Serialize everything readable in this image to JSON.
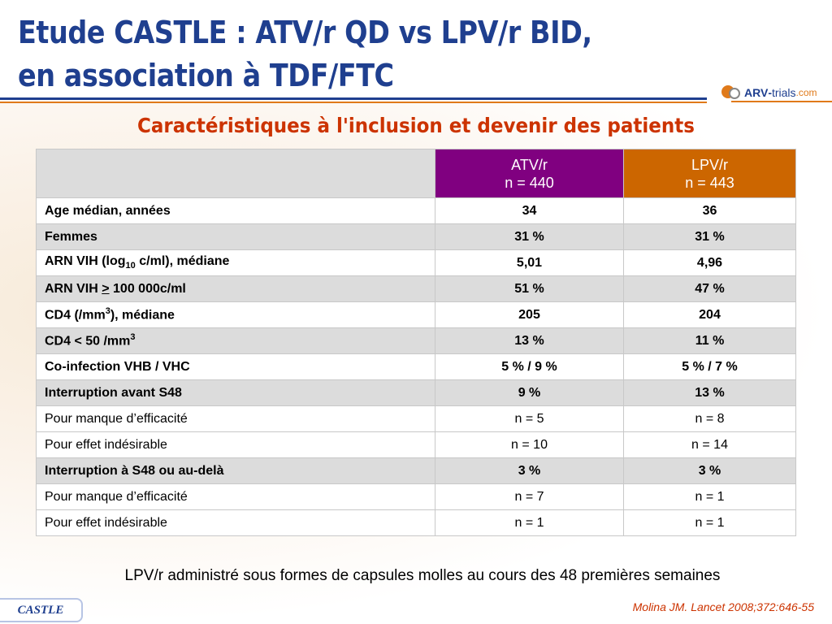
{
  "title": {
    "line1": "Etude CASTLE : ATV/r QD vs LPV/r BID,",
    "line2": "en association à TDF/FTC"
  },
  "logo": {
    "arv": "ARV",
    "dash": "-",
    "trials": "trials",
    "com": ".com"
  },
  "subtitle": "Caractéristiques à l'inclusion et devenir des patients",
  "table": {
    "header": {
      "atv_name": "ATV/r",
      "atv_n": "n = 440",
      "lpv_name": "LPV/r",
      "lpv_n": "n = 443"
    },
    "rows": [
      {
        "label": "Age médian, années",
        "atv": "34",
        "lpv": "36"
      },
      {
        "label": "Femmes",
        "atv": "31 %",
        "lpv": "31 %"
      },
      {
        "label_pre": "ARN VIH (log",
        "label_sub": "10",
        "label_post": " c/ml), médiane",
        "atv": "5,01",
        "lpv": "4,96"
      },
      {
        "label_pre": "ARN VIH ",
        "label_u": ">",
        "label_post": " 100 000c/ml",
        "atv": "51 %",
        "lpv": "47 %"
      },
      {
        "label_pre": "CD4 (/mm",
        "label_sup": "3",
        "label_post": "), médiane",
        "atv": "205",
        "lpv": "204"
      },
      {
        "label_pre": "CD4 < 50 /mm",
        "label_sup": "3",
        "atv": "13 %",
        "lpv": "11 %"
      },
      {
        "label": "Co-infection VHB / VHC",
        "atv": "5 % / 9 %",
        "lpv": "5 % / 7 %"
      },
      {
        "label": "Interruption avant S48",
        "atv": "9 %",
        "lpv": "13 %"
      },
      {
        "label": "Pour manque d’efficacité",
        "atv": "n = 5",
        "lpv": "n = 8"
      },
      {
        "label": "Pour effet indésirable",
        "atv": "n = 10",
        "lpv": "n = 14"
      },
      {
        "label": "Interruption à S48 ou au-delà",
        "atv": "3 %",
        "lpv": "3 %"
      },
      {
        "label": "Pour manque d’efficacité",
        "atv": "n = 7",
        "lpv": "n = 1"
      },
      {
        "label": "Pour effet indésirable",
        "atv": "n = 1",
        "lpv": "n = 1"
      }
    ]
  },
  "footnote": "LPV/r administré sous formes de capsules molles au cours des 48 premières semaines",
  "badge": "CASTLE",
  "citation": "Molina JM. Lancet 2008;372:646-55",
  "colors": {
    "title": "#1f3f8f",
    "subtitle": "#cc3300",
    "atv_header": "#800080",
    "lpv_header": "#cc6600",
    "row_shade": "#dcdcdc"
  }
}
